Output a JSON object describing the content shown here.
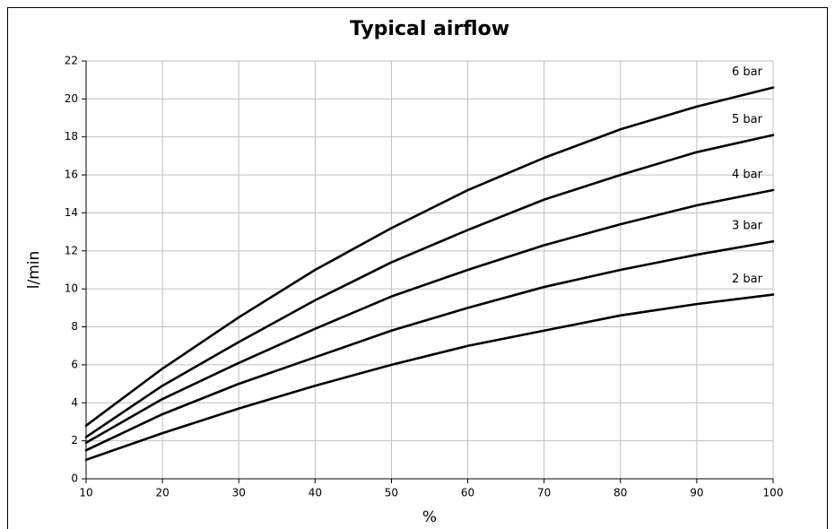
{
  "chart_data": {
    "type": "line",
    "title": "Typical airflow",
    "x_label": "%",
    "y_label": "l/min",
    "x": [
      10,
      20,
      30,
      40,
      50,
      60,
      70,
      80,
      90,
      100
    ],
    "series": [
      {
        "name": "6 bar",
        "color": "#000000",
        "values": [
          2.8,
          5.8,
          8.5,
          11.0,
          13.2,
          15.2,
          16.9,
          18.4,
          19.6,
          20.6
        ]
      },
      {
        "name": "5 bar",
        "color": "#000000",
        "values": [
          2.2,
          4.9,
          7.2,
          9.4,
          11.4,
          13.1,
          14.7,
          16.0,
          17.2,
          18.1
        ]
      },
      {
        "name": "4 bar",
        "color": "#000000",
        "values": [
          1.9,
          4.2,
          6.1,
          7.9,
          9.6,
          11.0,
          12.3,
          13.4,
          14.4,
          15.2
        ]
      },
      {
        "name": "3 bar",
        "color": "#000000",
        "values": [
          1.5,
          3.4,
          5.0,
          6.4,
          7.8,
          9.0,
          10.1,
          11.0,
          11.8,
          12.5
        ]
      },
      {
        "name": "2 bar",
        "color": "#000000",
        "values": [
          1.0,
          2.4,
          3.7,
          4.9,
          6.0,
          7.0,
          7.8,
          8.6,
          9.2,
          9.7
        ]
      }
    ],
    "xlim": [
      10,
      100
    ],
    "xticks": [
      10,
      20,
      30,
      40,
      50,
      60,
      70,
      80,
      90,
      100
    ],
    "ylim": [
      0,
      22
    ],
    "yticks": [
      0,
      2,
      4,
      6,
      8,
      10,
      12,
      14,
      16,
      18,
      20,
      22
    ],
    "grid": true
  }
}
